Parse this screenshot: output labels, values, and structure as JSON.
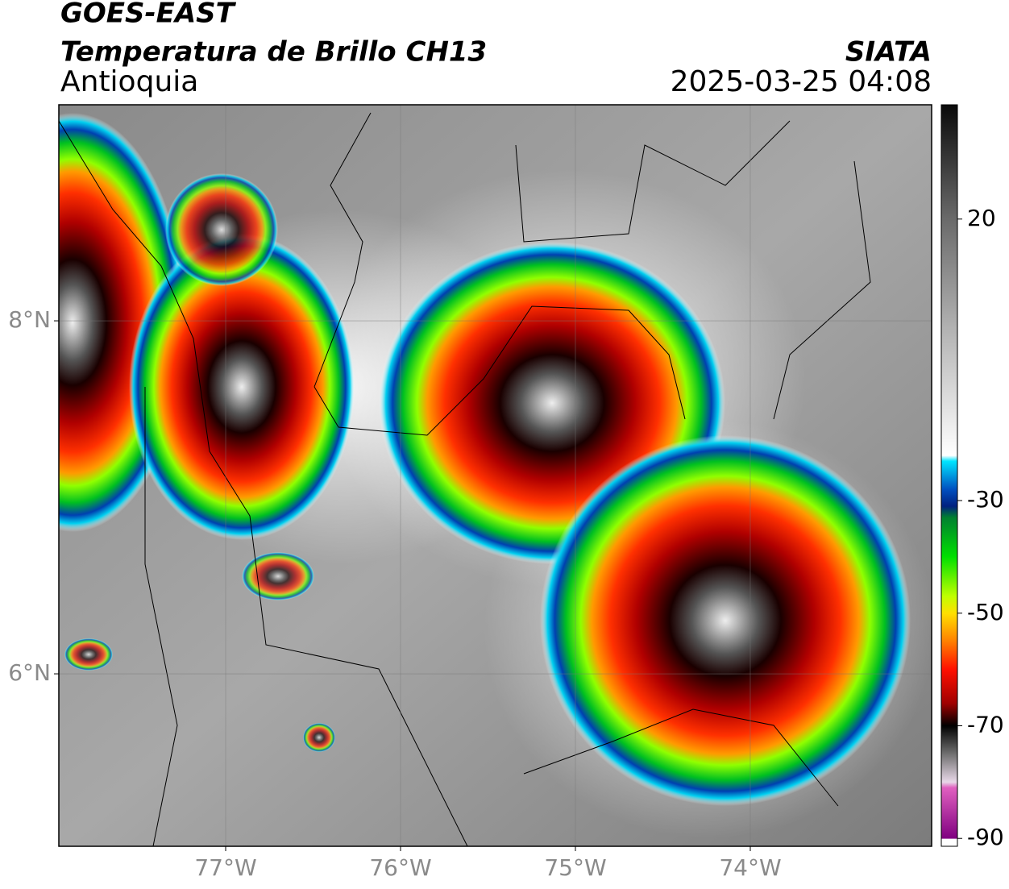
{
  "header": {
    "title": "GOES-EAST",
    "subtitle": "Temperatura de Brillo CH13",
    "region": "Antioquia",
    "source": "SIATA",
    "datetime": "2025-03-25 04:08"
  },
  "map": {
    "lon_lim": [
      -77.954,
      -72.963
    ],
    "lat_lim": [
      5.023,
      9.224
    ],
    "lon_ticks": [
      {
        "value": -77,
        "label": "77°W"
      },
      {
        "value": -76,
        "label": "76°W"
      },
      {
        "value": -75,
        "label": "75°W"
      },
      {
        "value": -74,
        "label": "74°W"
      }
    ],
    "lat_ticks": [
      {
        "value": 8,
        "label": "8°N"
      },
      {
        "value": 6,
        "label": "6°N"
      }
    ],
    "grid": true
  },
  "colorbar": {
    "lim": [
      -91.4,
      40.3
    ],
    "ticks": [
      20,
      -30,
      -50,
      -70,
      -90
    ],
    "stops": [
      [
        40.3,
        "#0a0a0a"
      ],
      [
        20,
        "#6a6a6a"
      ],
      [
        0,
        "#b4b4b4"
      ],
      [
        -22,
        "#ffffff"
      ],
      [
        -23,
        "#00e5ff"
      ],
      [
        -28,
        "#0050c0"
      ],
      [
        -31,
        "#002080"
      ],
      [
        -33,
        "#008030"
      ],
      [
        -40,
        "#00e000"
      ],
      [
        -47,
        "#c0ff00"
      ],
      [
        -50,
        "#ffe000"
      ],
      [
        -55,
        "#ff8000"
      ],
      [
        -60,
        "#ff1000"
      ],
      [
        -66,
        "#a00000"
      ],
      [
        -70,
        "#000000"
      ],
      [
        -75,
        "#707070"
      ],
      [
        -80,
        "#e8d8e8"
      ],
      [
        -81,
        "#e060c0"
      ],
      [
        -90,
        "#800080"
      ],
      [
        -90.1,
        "#ffffff"
      ]
    ]
  }
}
